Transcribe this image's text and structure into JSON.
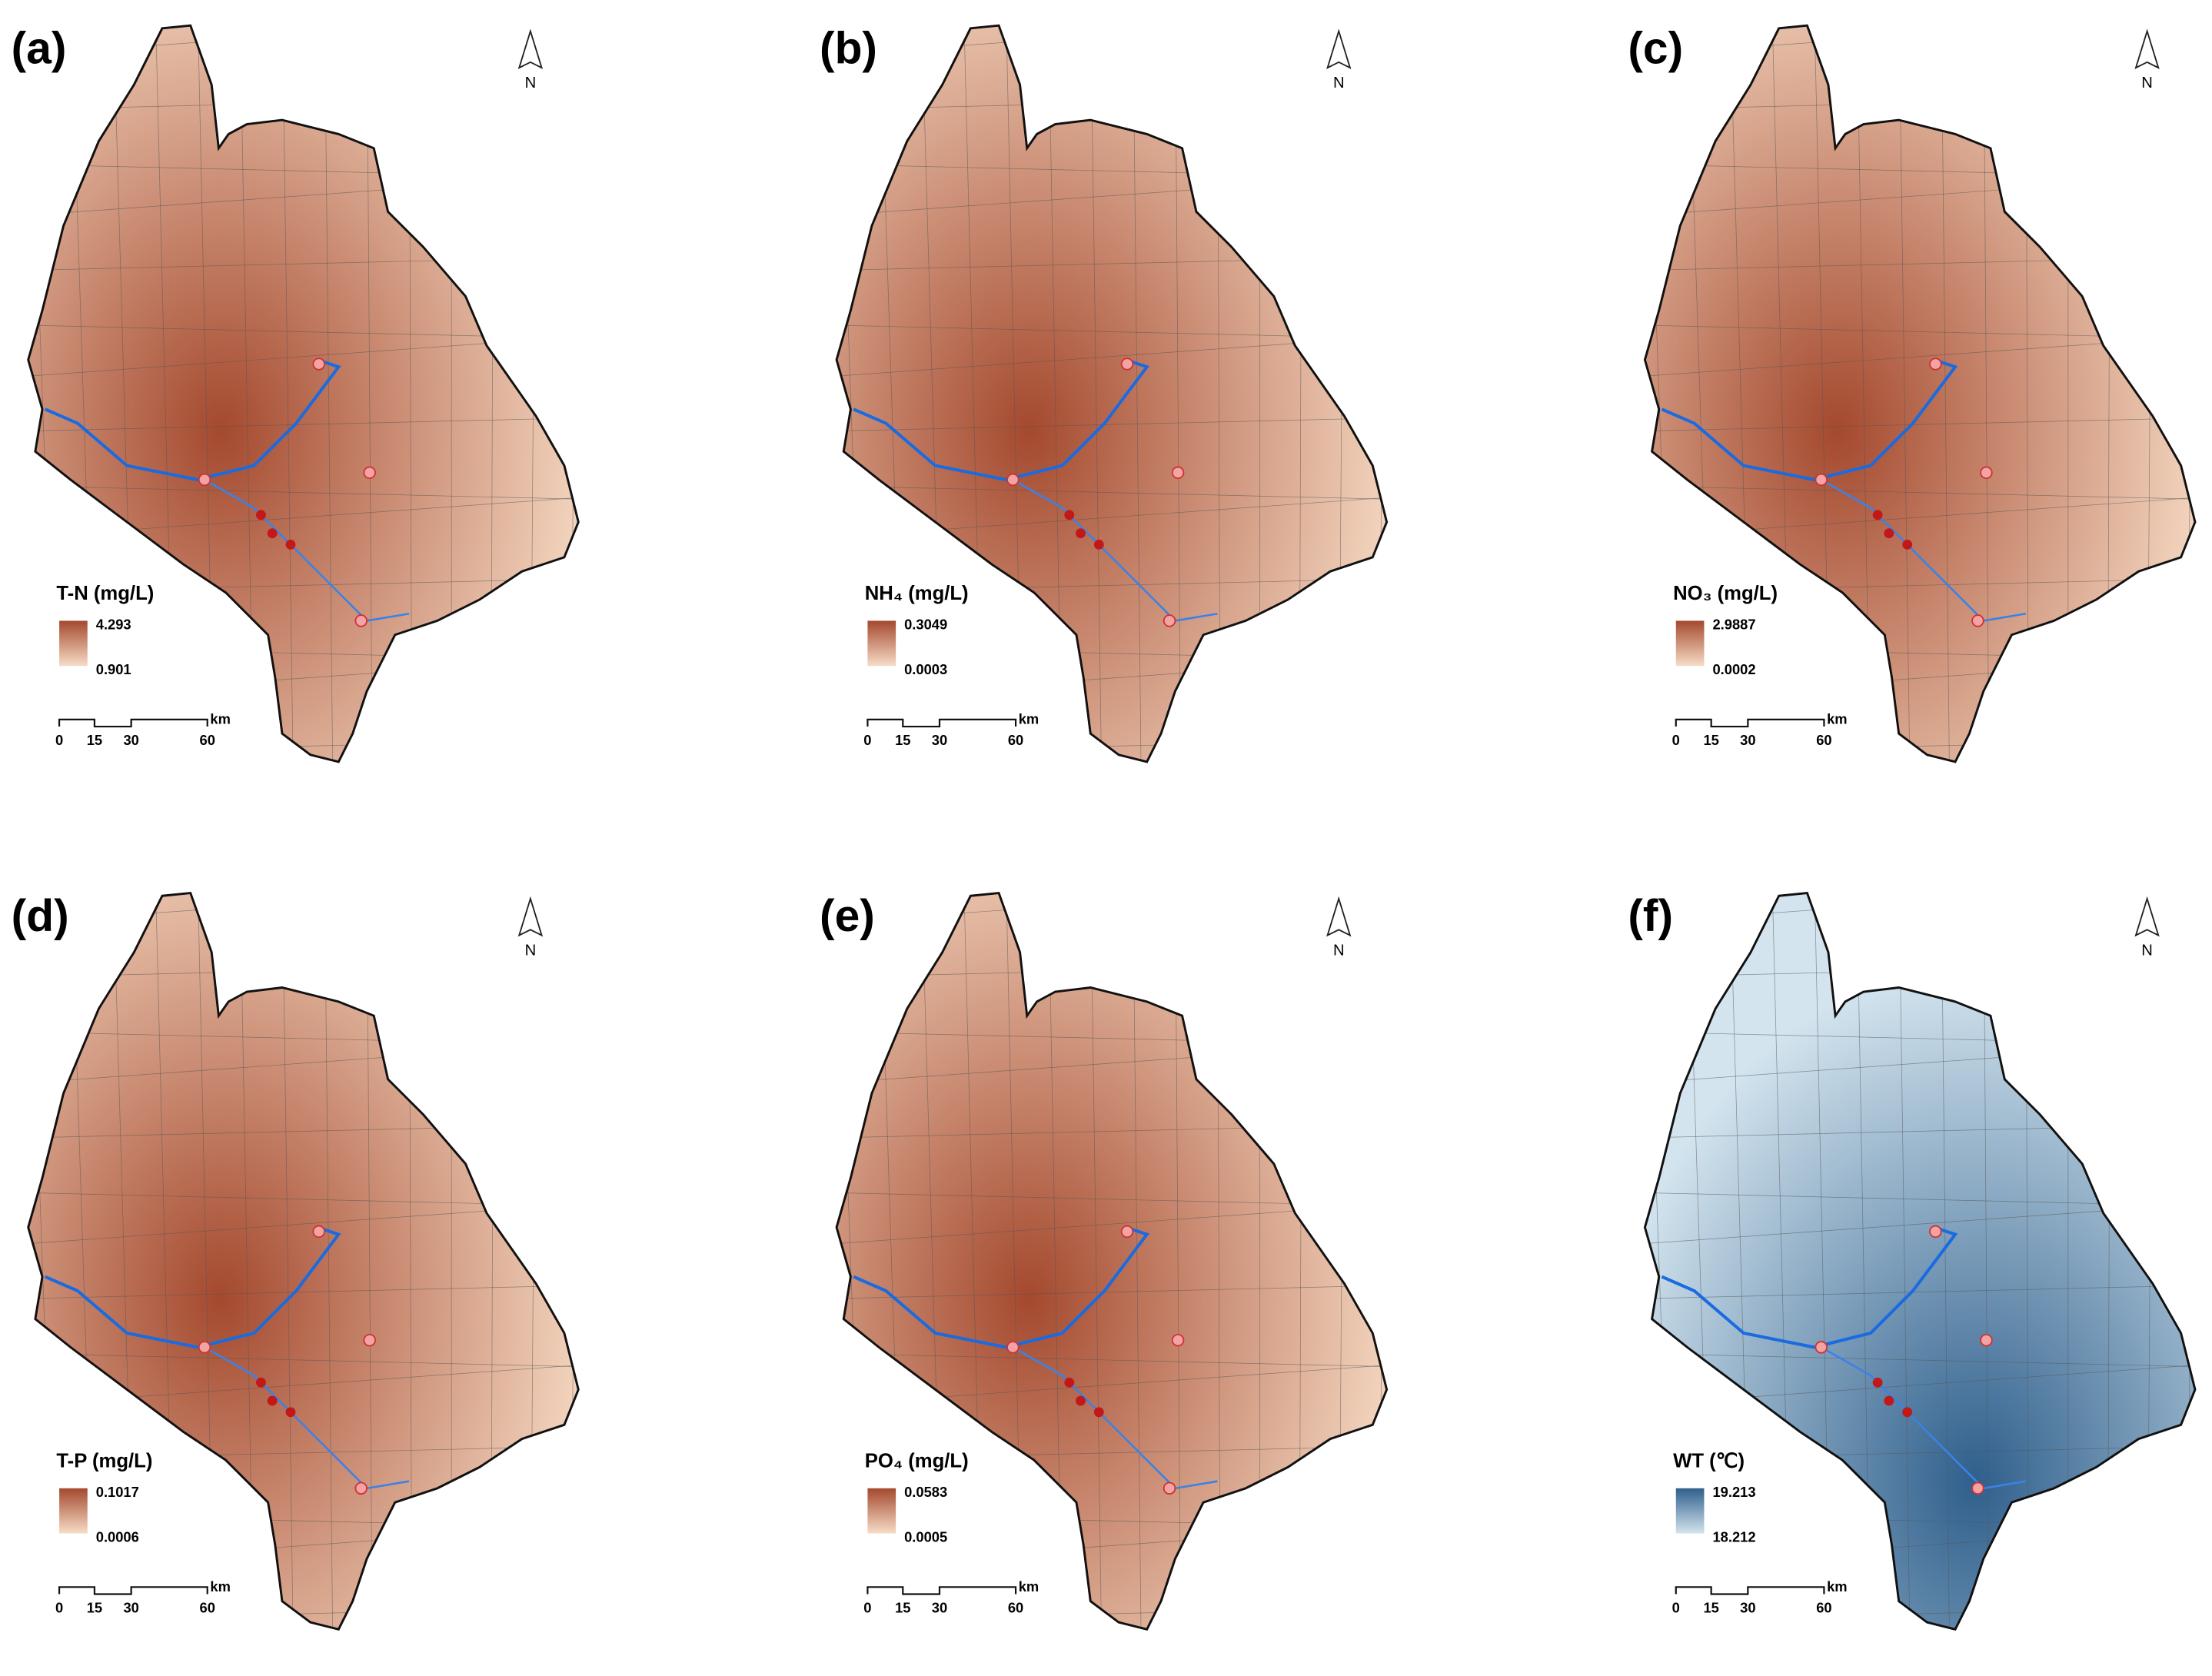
{
  "panels": [
    {
      "label": "(a)",
      "title": "T-N (mg/L)",
      "legend_max": "4.293",
      "legend_min": "0.901",
      "colors": [
        "#a4492e",
        "#f7dcc6"
      ],
      "scale_labels": [
        "0",
        "15",
        "30",
        "60"
      ],
      "scale_unit": "km",
      "north": "N"
    },
    {
      "label": "(b)",
      "title": "NH₄ (mg/L)",
      "legend_max": "0.3049",
      "legend_min": "0.0003",
      "colors": [
        "#a4492e",
        "#f7dcc6"
      ],
      "scale_labels": [
        "0",
        "15",
        "30",
        "60"
      ],
      "scale_unit": "km",
      "north": "N"
    },
    {
      "label": "(c)",
      "title": "NO₃ (mg/L)",
      "legend_max": "2.9887",
      "legend_min": "0.0002",
      "colors": [
        "#a4492e",
        "#f7dcc6"
      ],
      "scale_labels": [
        "0",
        "15",
        "30",
        "60"
      ],
      "scale_unit": "km",
      "north": "N"
    },
    {
      "label": "(d)",
      "title": "T-P (mg/L)",
      "legend_max": "0.1017",
      "legend_min": "0.0006",
      "colors": [
        "#a4492e",
        "#f7dcc6"
      ],
      "scale_labels": [
        "0",
        "15",
        "30",
        "60"
      ],
      "scale_unit": "km",
      "north": "N"
    },
    {
      "label": "(e)",
      "title": "PO₄ (mg/L)",
      "legend_max": "0.0583",
      "legend_min": "0.0005",
      "colors": [
        "#a4492e",
        "#f7dcc6"
      ],
      "scale_labels": [
        "0",
        "15",
        "30",
        "60"
      ],
      "scale_unit": "km",
      "north": "N"
    },
    {
      "label": "(f)",
      "title": "WT (℃)",
      "legend_max": "19.213",
      "legend_min": "18.212",
      "colors": [
        "#2f5f8c",
        "#d3e4ee"
      ],
      "scale_labels": [
        "0",
        "15",
        "30",
        "60"
      ],
      "scale_unit": "km",
      "north": "N"
    }
  ]
}
